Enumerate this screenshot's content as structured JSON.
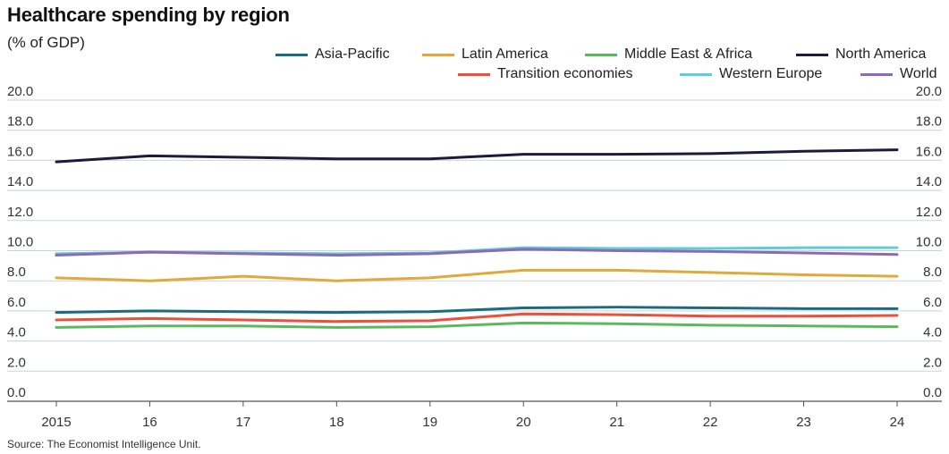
{
  "chart_data": {
    "type": "line",
    "title": "Healthcare spending by region",
    "subtitle": "(% of GDP)",
    "source": "Source: The Economist Intelligence Unit.",
    "x": [
      "2015",
      "16",
      "17",
      "18",
      "19",
      "20",
      "21",
      "22",
      "23",
      "24"
    ],
    "ylim": [
      0,
      20
    ],
    "yticks": [
      "0.0",
      "2.0",
      "4.0",
      "6.0",
      "8.0",
      "10.0",
      "12.0",
      "14.0",
      "16.0",
      "18.0",
      "20.0"
    ],
    "grid": true,
    "legend_position": "top-right",
    "series": [
      {
        "name": "Asia-Pacific",
        "color": "#1a6b80",
        "values": [
          5.9,
          6.0,
          5.95,
          5.9,
          5.95,
          6.2,
          6.25,
          6.2,
          6.15,
          6.15
        ]
      },
      {
        "name": "Latin America",
        "color": "#e0a93a",
        "values": [
          8.2,
          8.0,
          8.3,
          8.0,
          8.2,
          8.7,
          8.7,
          8.55,
          8.4,
          8.3
        ]
      },
      {
        "name": "Middle East & Africa",
        "color": "#5cb85c",
        "values": [
          4.9,
          5.0,
          5.0,
          4.9,
          4.95,
          5.2,
          5.15,
          5.05,
          5.0,
          4.95
        ]
      },
      {
        "name": "North America",
        "color": "#1b1b3a",
        "values": [
          15.9,
          16.3,
          16.2,
          16.1,
          16.1,
          16.4,
          16.4,
          16.45,
          16.6,
          16.7
        ]
      },
      {
        "name": "Transition economies",
        "color": "#e8513a",
        "values": [
          5.4,
          5.5,
          5.4,
          5.3,
          5.35,
          5.8,
          5.75,
          5.65,
          5.65,
          5.7
        ]
      },
      {
        "name": "Western Europe",
        "color": "#5ccfd6",
        "values": [
          9.8,
          9.9,
          9.85,
          9.8,
          9.85,
          10.2,
          10.15,
          10.15,
          10.2,
          10.2
        ]
      },
      {
        "name": "World",
        "color": "#8e69b8",
        "values": [
          9.7,
          9.9,
          9.8,
          9.7,
          9.8,
          10.1,
          10.0,
          9.95,
          9.85,
          9.75
        ]
      }
    ]
  }
}
